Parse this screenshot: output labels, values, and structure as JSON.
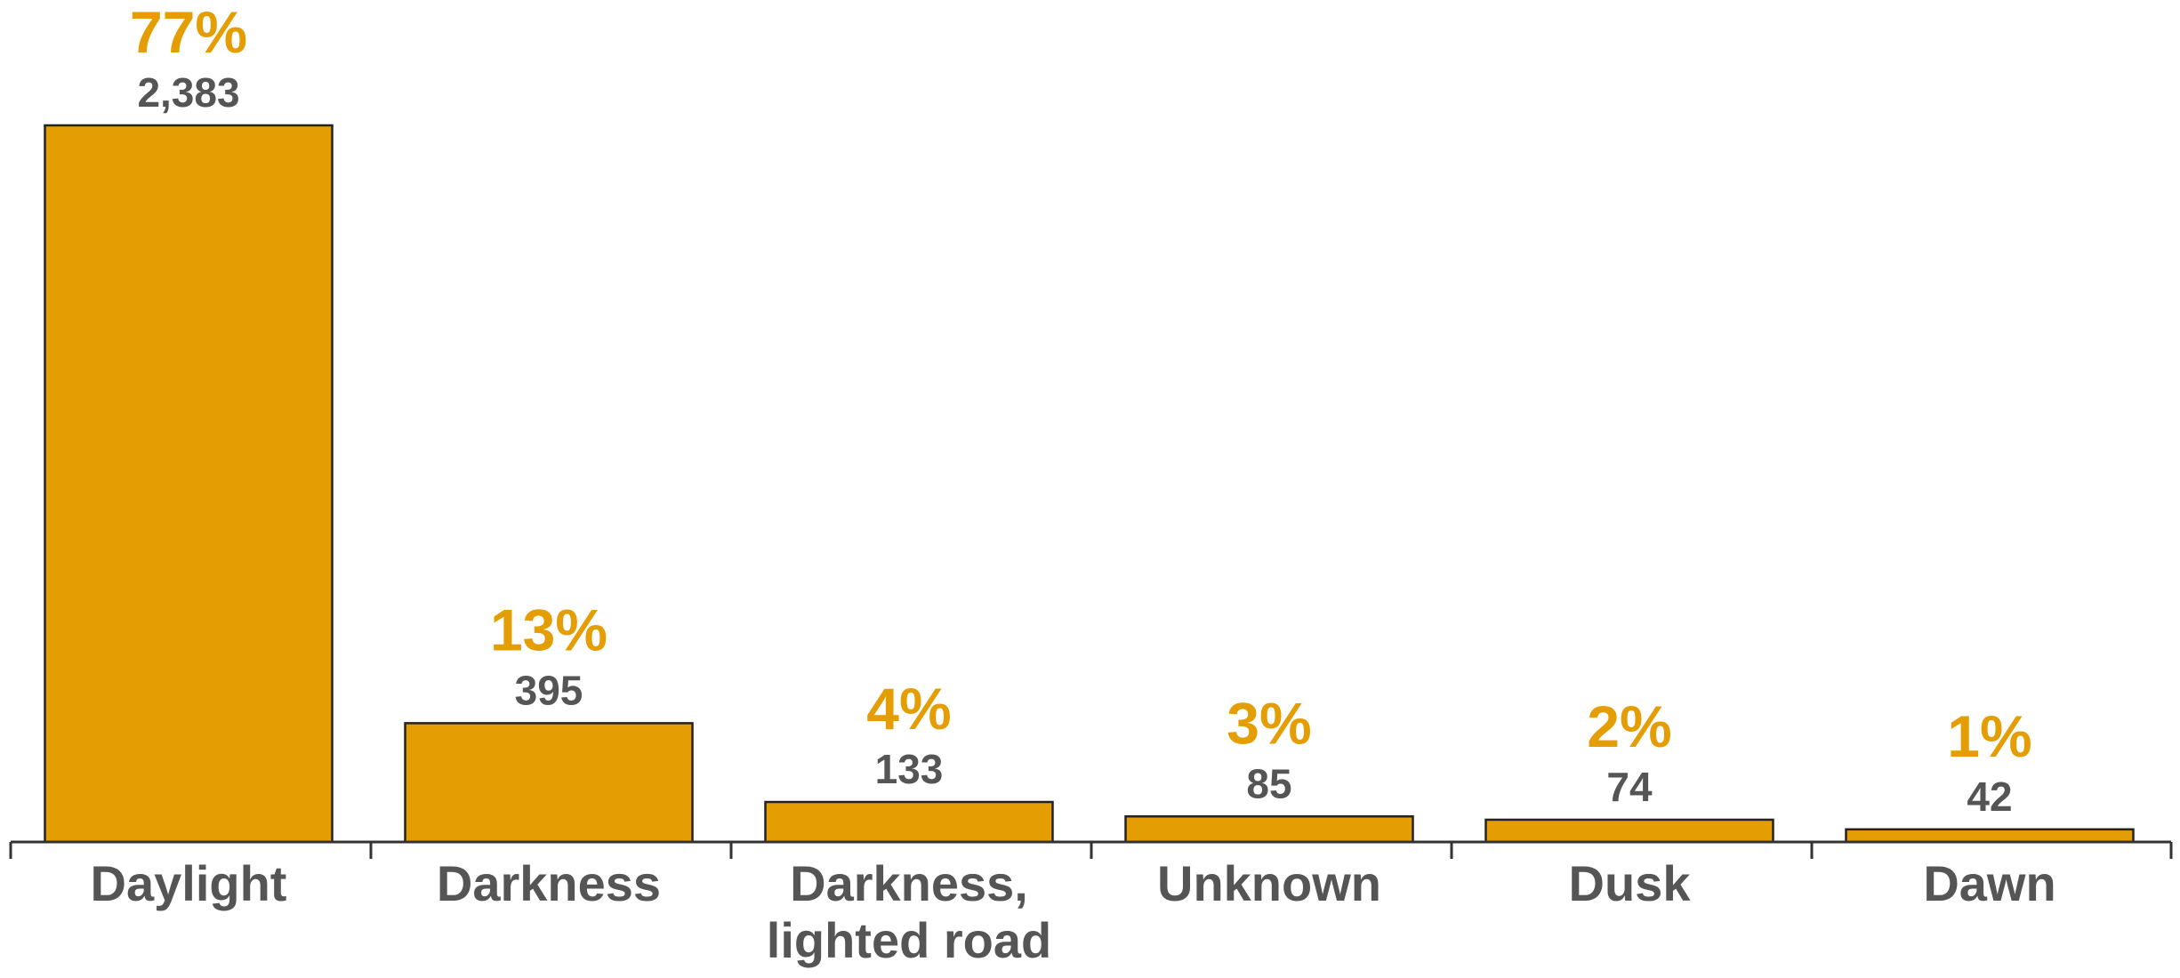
{
  "chart_data": {
    "type": "bar",
    "categories": [
      "Daylight",
      "Darkness",
      "Darkness, lighted road",
      "Unknown",
      "Dusk",
      "Dawn"
    ],
    "category_lines": [
      [
        "Daylight"
      ],
      [
        "Darkness"
      ],
      [
        "Darkness,",
        "lighted road"
      ],
      [
        "Unknown"
      ],
      [
        "Dusk"
      ],
      [
        "Dawn"
      ]
    ],
    "values": [
      2383,
      395,
      133,
      85,
      74,
      42
    ],
    "value_labels": [
      "2,383",
      "395",
      "133",
      "85",
      "74",
      "42"
    ],
    "percent_labels": [
      "77%",
      "13%",
      "4%",
      "3%",
      "2%",
      "1%"
    ],
    "title": "",
    "xlabel": "",
    "ylabel": "",
    "ylim": [
      0,
      2383
    ],
    "grid": false,
    "legend": "none"
  },
  "colors": {
    "bar_fill": "#E49E04",
    "bar_stroke": "#222222",
    "percent_text": "#E49E04",
    "value_text": "#555555",
    "category_text": "#555555",
    "axis": "#333333"
  }
}
